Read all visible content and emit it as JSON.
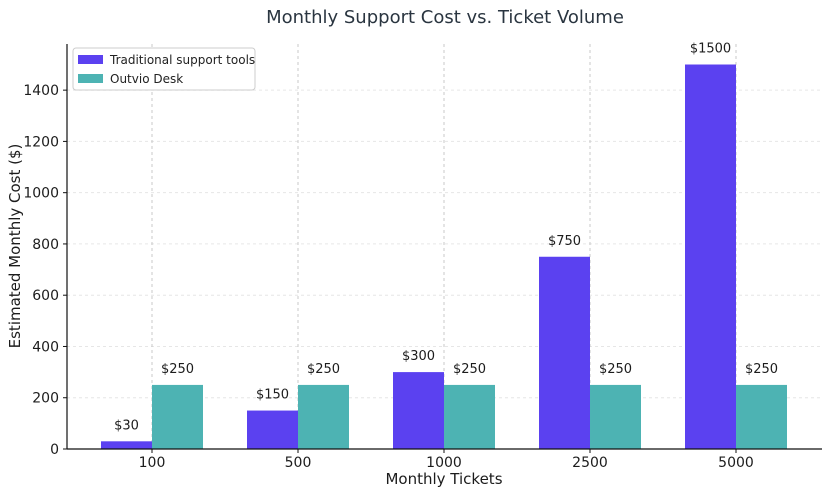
{
  "chart_data": {
    "type": "bar",
    "title": "Monthly Support Cost vs. Ticket Volume",
    "xlabel": "Monthly Tickets",
    "ylabel": "Estimated Monthly Cost ($)",
    "categories": [
      "100",
      "500",
      "1000",
      "2500",
      "5000"
    ],
    "series": [
      {
        "name": "Traditional support tools",
        "values": [
          30,
          150,
          300,
          750,
          1500
        ],
        "color": "#5b41f0",
        "labels": [
          "$30",
          "$150",
          "$300",
          "$750",
          "$1500"
        ]
      },
      {
        "name": "Outvio Desk",
        "values": [
          250,
          250,
          250,
          250,
          250
        ],
        "color": "#4db3b3",
        "labels": [
          "$250",
          "$250",
          "$250",
          "$250",
          "$250"
        ]
      }
    ],
    "ylim": [
      0,
      1580
    ],
    "yticks": [
      0,
      200,
      400,
      600,
      800,
      1000,
      1200,
      1400
    ],
    "grid": true,
    "legend_position": "top-left"
  }
}
